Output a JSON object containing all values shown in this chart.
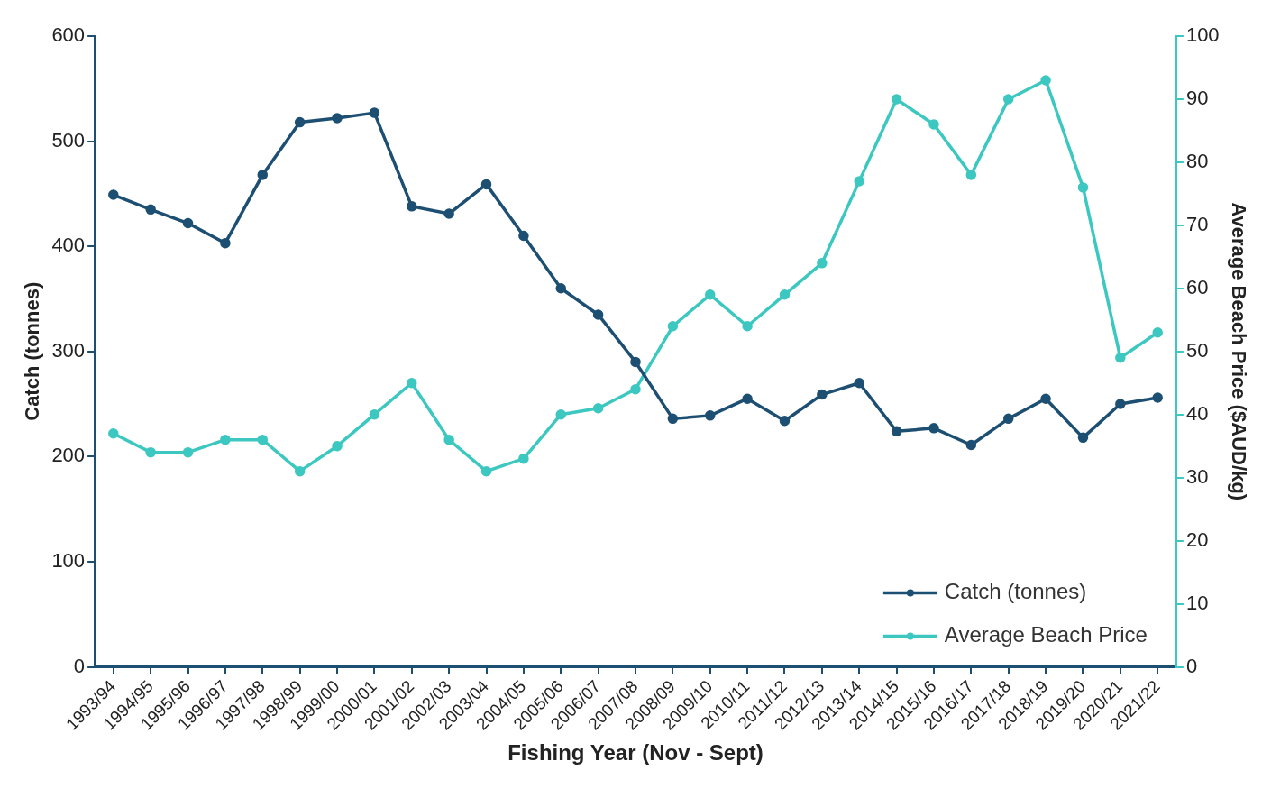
{
  "chart_data": {
    "type": "line",
    "xlabel": "Fishing Year (Nov - Sept)",
    "ylabel": "Catch (tonnes)",
    "y2label": "Average Beach Price ($AUD/kg)",
    "categories": [
      "1993/94",
      "1994/95",
      "1995/96",
      "1996/97",
      "1997/98",
      "1998/99",
      "1999/00",
      "2000/01",
      "2001/02",
      "2002/03",
      "2003/04",
      "2004/05",
      "2005/06",
      "2006/07",
      "2007/08",
      "2008/09",
      "2009/10",
      "2010/11",
      "2011/12",
      "2012/13",
      "2013/14",
      "2014/15",
      "2015/16",
      "2016/17",
      "2017/18",
      "2018/19",
      "2019/20",
      "2020/21",
      "2021/22"
    ],
    "series": [
      {
        "name": "Catch (tonnes)",
        "color": "#1d4f73",
        "values": [
          449,
          435,
          422,
          403,
          468,
          518,
          522,
          527,
          438,
          431,
          459,
          410,
          360,
          335,
          290,
          236,
          239,
          255,
          234,
          259,
          270,
          224,
          227,
          211,
          236,
          255,
          218,
          250,
          256
        ]
      },
      {
        "name": "Average Beach Price",
        "color": "#3cc8c0",
        "axis": "y2",
        "values": [
          37,
          34,
          34,
          36,
          36,
          31,
          35,
          40,
          45,
          36,
          31,
          33,
          40,
          41,
          44,
          54,
          59,
          54,
          59,
          64,
          77,
          90,
          86,
          78,
          90,
          93,
          76,
          49,
          53
        ]
      }
    ],
    "ylim": [
      0,
      600
    ],
    "yticks": [
      0,
      100,
      200,
      300,
      400,
      500,
      600
    ],
    "y2lim": [
      0,
      100
    ],
    "y2ticks": [
      0,
      10,
      20,
      30,
      40,
      50,
      60,
      70,
      80,
      90,
      100
    ],
    "grid": false,
    "legend": "bottom right",
    "marker": "circle",
    "line_style": "solid"
  }
}
